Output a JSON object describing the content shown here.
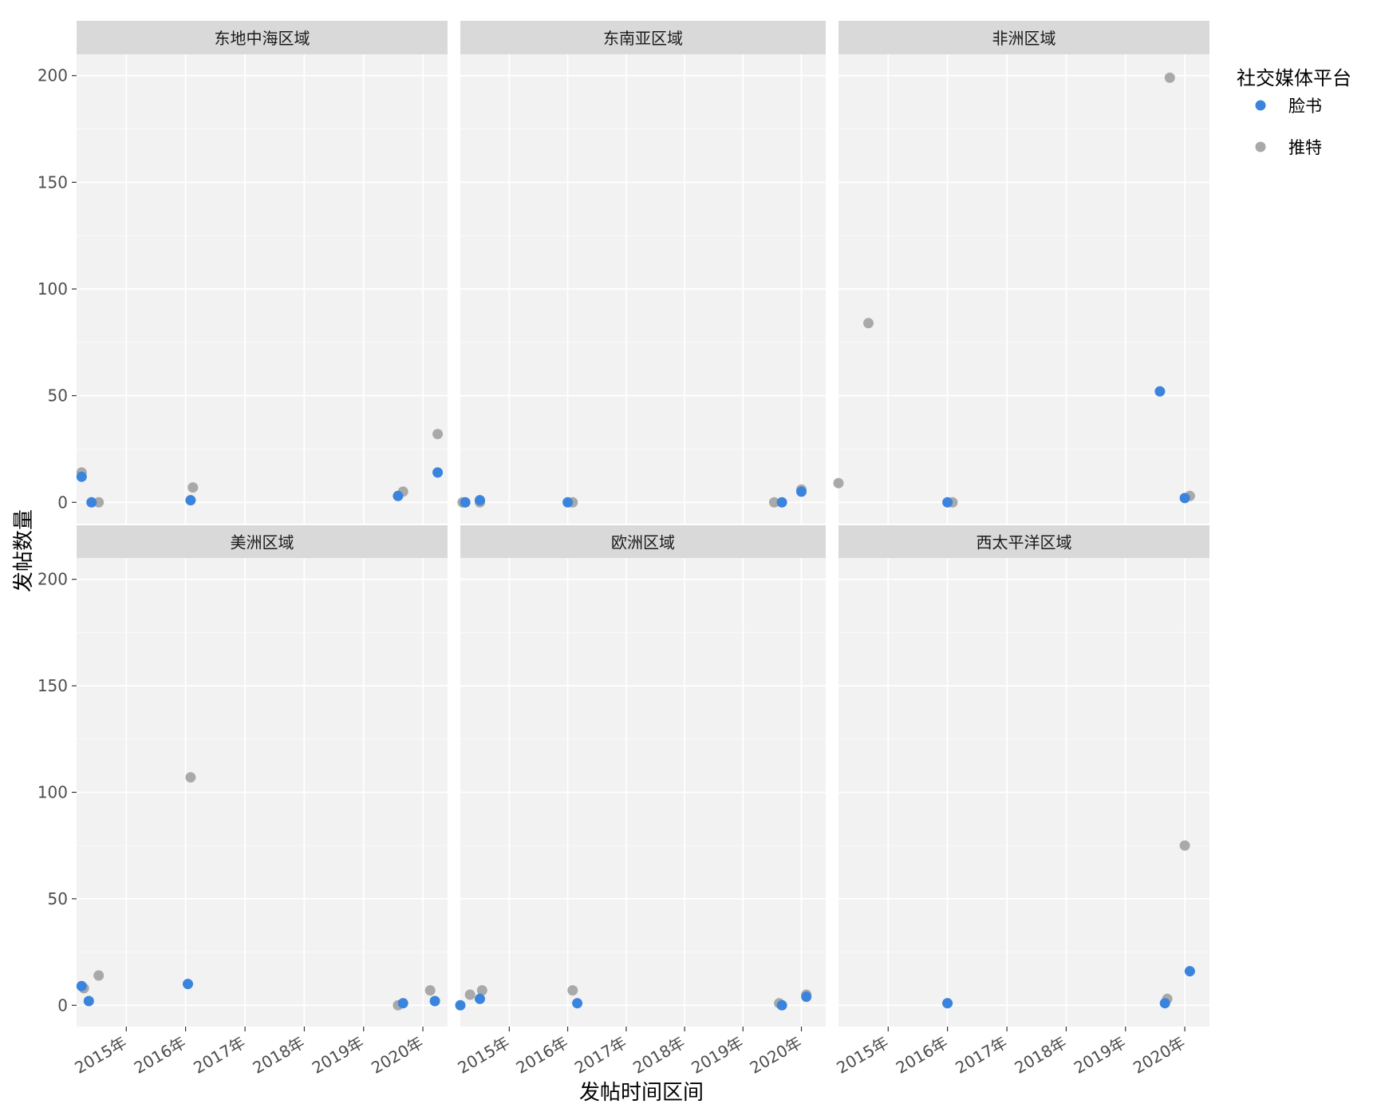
{
  "chart_data": {
    "type": "scatter",
    "facet_type": "facet_wrap",
    "xlabel": "发帖时间区间",
    "ylabel": "发帖数量",
    "x_ticks": [
      "2015年",
      "2016年",
      "2017年",
      "2018年",
      "2019年",
      "2020年"
    ],
    "y_ticks": [
      0,
      50,
      100,
      150,
      200
    ],
    "ylim": [
      -10,
      210
    ],
    "xlim": [
      "2014-03-01",
      "2020-06-01"
    ],
    "grid": true,
    "legend": {
      "title": "社交媒体平台",
      "placement": "right",
      "items": [
        {
          "name": "脸书",
          "color": "#3b84dd"
        },
        {
          "name": "推特",
          "color": "#a9a9a9"
        }
      ]
    },
    "panels": [
      {
        "title": "东地中海区域",
        "series": [
          {
            "name": "脸书",
            "points": [
              [
                "2014-04-01",
                12
              ],
              [
                "2014-06-01",
                0
              ],
              [
                "2016-02-01",
                1
              ],
              [
                "2019-08-01",
                3
              ],
              [
                "2020-04-01",
                14
              ]
            ]
          },
          {
            "name": "推特",
            "points": [
              [
                "2014-04-01",
                14
              ],
              [
                "2014-07-15",
                0
              ],
              [
                "2016-02-15",
                7
              ],
              [
                "2019-09-01",
                5
              ],
              [
                "2020-04-01",
                32
              ]
            ]
          }
        ]
      },
      {
        "title": "东南亚区域",
        "series": [
          {
            "name": "脸书",
            "points": [
              [
                "2014-04-01",
                0
              ],
              [
                "2014-07-01",
                1
              ],
              [
                "2016-01-01",
                0
              ],
              [
                "2019-09-01",
                0
              ],
              [
                "2020-01-01",
                5
              ]
            ]
          },
          {
            "name": "推特",
            "points": [
              [
                "2014-03-15",
                0
              ],
              [
                "2014-07-01",
                0
              ],
              [
                "2016-02-01",
                0
              ],
              [
                "2019-07-15",
                0
              ],
              [
                "2020-01-01",
                6
              ]
            ]
          }
        ]
      },
      {
        "title": "非洲区域",
        "series": [
          {
            "name": "脸书",
            "points": [
              [
                "2016-01-01",
                0
              ],
              [
                "2019-08-01",
                52
              ],
              [
                "2020-01-01",
                2
              ]
            ]
          },
          {
            "name": "推特",
            "points": [
              [
                "2014-03-01",
                9
              ],
              [
                "2014-09-01",
                84
              ],
              [
                "2016-02-01",
                0
              ],
              [
                "2019-10-01",
                199
              ],
              [
                "2020-02-01",
                3
              ]
            ]
          }
        ]
      },
      {
        "title": "美洲区域",
        "series": [
          {
            "name": "脸书",
            "points": [
              [
                "2014-04-01",
                9
              ],
              [
                "2014-05-15",
                2
              ],
              [
                "2016-01-15",
                10
              ],
              [
                "2019-09-01",
                1
              ],
              [
                "2020-03-15",
                2
              ]
            ]
          },
          {
            "name": "推特",
            "points": [
              [
                "2014-04-15",
                8
              ],
              [
                "2014-07-15",
                14
              ],
              [
                "2016-02-01",
                107
              ],
              [
                "2019-08-01",
                0
              ],
              [
                "2020-02-15",
                7
              ]
            ]
          }
        ]
      },
      {
        "title": "欧洲区域",
        "series": [
          {
            "name": "脸书",
            "points": [
              [
                "2014-03-01",
                0
              ],
              [
                "2014-07-01",
                3
              ],
              [
                "2016-03-01",
                1
              ],
              [
                "2019-09-01",
                0
              ],
              [
                "2020-02-01",
                4
              ]
            ]
          },
          {
            "name": "推特",
            "points": [
              [
                "2014-05-01",
                5
              ],
              [
                "2014-07-15",
                7
              ],
              [
                "2016-02-01",
                7
              ],
              [
                "2019-08-15",
                1
              ],
              [
                "2020-02-01",
                5
              ]
            ]
          }
        ]
      },
      {
        "title": "西太平洋区域",
        "series": [
          {
            "name": "脸书",
            "points": [
              [
                "2016-01-01",
                1
              ],
              [
                "2019-09-01",
                1
              ],
              [
                "2020-02-01",
                16
              ]
            ]
          },
          {
            "name": "推特",
            "points": [
              [
                "2016-01-01",
                1
              ],
              [
                "2019-09-15",
                3
              ],
              [
                "2020-01-01",
                75
              ]
            ]
          }
        ]
      }
    ]
  }
}
